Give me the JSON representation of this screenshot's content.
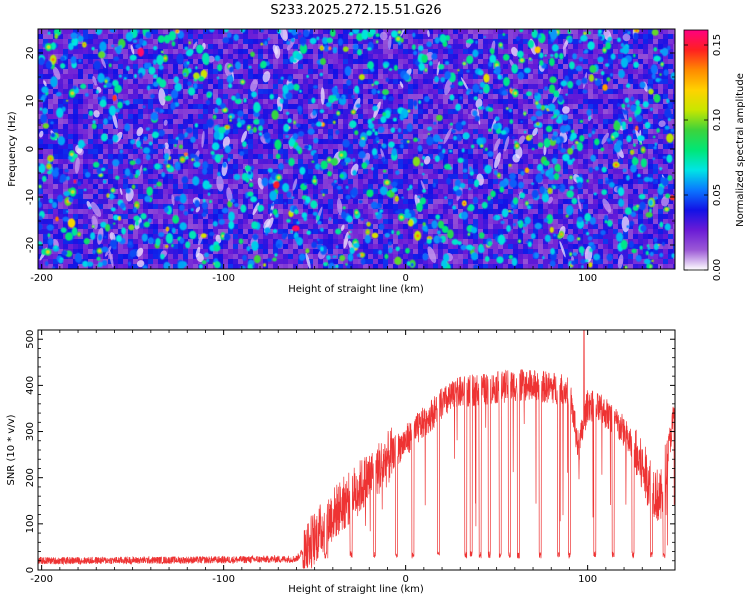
{
  "chart_data": [
    {
      "type": "heatmap",
      "title": "S233.2025.272.15.51.G26",
      "xlabel": "Height of straight line (km)",
      "ylabel": "Frequency (Hz)",
      "xlim": [
        -202,
        148
      ],
      "ylim": [
        -25,
        25
      ],
      "xticks": [
        -200,
        -100,
        0,
        100
      ],
      "xtick_labels": [
        "-200",
        "-100",
        "0",
        "100"
      ],
      "yticks": [
        -20,
        -10,
        0,
        10,
        20
      ],
      "ytick_labels": [
        "-20",
        "-10",
        "0",
        "10",
        "20"
      ],
      "colorbar": {
        "label": "Normalized spectral amplitude",
        "range": [
          0,
          0.16
        ],
        "ticks": [
          0,
          0.05,
          0.1,
          0.15
        ],
        "tick_labels": [
          "0.00",
          "0.05",
          "0.10",
          "0.15"
        ],
        "colormap": [
          "#ffffff",
          "#9b59d6",
          "#6a1bd6",
          "#1212e6",
          "#0a78ff",
          "#00e5e5",
          "#00e676",
          "#3cd33c",
          "#c8e600",
          "#ffd200",
          "#ff8a00",
          "#ff2020",
          "#ff0080"
        ]
      },
      "field_description": "noise-like speckle; mean amplitude ~0.02-0.04 with scattered blobs up to ~0.15"
    },
    {
      "type": "line",
      "xlabel": "Height of straight line (km)",
      "ylabel": "SNR (10 * v/v)",
      "xlim": [
        -202,
        148
      ],
      "ylim": [
        0,
        520
      ],
      "xticks": [
        -200,
        -100,
        0,
        100
      ],
      "xtick_labels": [
        "-200",
        "-100",
        "0",
        "100"
      ],
      "yticks": [
        0,
        100,
        200,
        300,
        400,
        500
      ],
      "ytick_labels": [
        "0",
        "100",
        "200",
        "300",
        "400",
        "500"
      ],
      "series": [
        {
          "name": "SNR",
          "color": "#ee3333",
          "envelope_x": [
            -202,
            -150,
            -100,
            -60,
            -50,
            -40,
            -30,
            -20,
            -10,
            0,
            10,
            20,
            30,
            40,
            50,
            60,
            70,
            80,
            90,
            95,
            100,
            110,
            120,
            130,
            140,
            148
          ],
          "envelope_y": [
            20,
            21,
            22,
            24,
            70,
            120,
            160,
            200,
            240,
            280,
            320,
            360,
            385,
            390,
            395,
            400,
            400,
            395,
            390,
            260,
            360,
            340,
            300,
            220,
            150,
            350
          ],
          "noise_amplitude": 15,
          "dropouts_x": [
            -44,
            -30,
            -17,
            -5,
            4,
            18,
            33,
            36,
            41,
            46,
            52,
            57,
            62,
            74,
            84,
            90,
            104,
            114,
            125,
            135,
            142
          ],
          "dropout_y": 25,
          "peak": {
            "x": 98,
            "y": 520
          }
        }
      ]
    }
  ]
}
